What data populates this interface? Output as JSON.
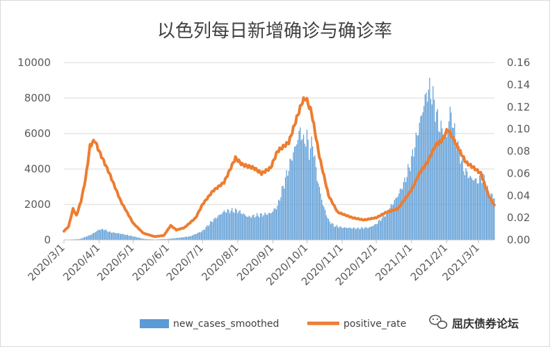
{
  "chart_data": {
    "type": "bar",
    "title": "以色列每日新增确诊与确诊率",
    "y_left": {
      "ticks": [
        "0",
        "2000",
        "4000",
        "6000",
        "8000",
        "10000"
      ],
      "range": [
        0,
        10000
      ]
    },
    "y_right": {
      "ticks": [
        "0.00",
        "0.02",
        "0.04",
        "0.06",
        "0.08",
        "0.10",
        "0.12",
        "0.14",
        "0.16"
      ],
      "range": [
        0,
        0.16
      ]
    },
    "x_ticks": [
      "2020/3/1",
      "2020/4/1",
      "2020/5/1",
      "2020/6/1",
      "2020/7/1",
      "2020/8/1",
      "2020/9/1",
      "2020/10/1",
      "2020/11/1",
      "2020/12/1",
      "2021/1/1",
      "2021/2/1",
      "2021/3/1"
    ],
    "x_range": [
      "2020/3/1",
      "2021/3/15"
    ],
    "legend_position": "bottom",
    "grid": true,
    "series": [
      {
        "name": "new_cases_smoothed",
        "type": "bar",
        "axis": "left",
        "color": "#5b9bd5",
        "points": [
          [
            "2020/3/1",
            0
          ],
          [
            "2020/3/15",
            50
          ],
          [
            "2020/3/25",
            300
          ],
          [
            "2020/4/1",
            580
          ],
          [
            "2020/4/5",
            600
          ],
          [
            "2020/4/10",
            450
          ],
          [
            "2020/4/20",
            350
          ],
          [
            "2020/5/1",
            200
          ],
          [
            "2020/5/10",
            60
          ],
          [
            "2020/5/20",
            20
          ],
          [
            "2020/6/1",
            60
          ],
          [
            "2020/6/10",
            120
          ],
          [
            "2020/6/20",
            200
          ],
          [
            "2020/7/1",
            500
          ],
          [
            "2020/7/10",
            1100
          ],
          [
            "2020/7/20",
            1600
          ],
          [
            "2020/7/25",
            1650
          ],
          [
            "2020/8/1",
            1650
          ],
          [
            "2020/8/5",
            1500
          ],
          [
            "2020/8/10",
            1300
          ],
          [
            "2020/8/20",
            1400
          ],
          [
            "2020/8/30",
            1500
          ],
          [
            "2020/9/5",
            1900
          ],
          [
            "2020/9/10",
            3000
          ],
          [
            "2020/9/17",
            4500
          ],
          [
            "2020/9/22",
            5500
          ],
          [
            "2020/9/25",
            6200
          ],
          [
            "2020/9/28",
            5500
          ],
          [
            "2020/10/1",
            5800
          ],
          [
            "2020/10/3",
            5000
          ],
          [
            "2020/10/6",
            5500
          ],
          [
            "2020/10/10",
            3500
          ],
          [
            "2020/10/15",
            2000
          ],
          [
            "2020/10/20",
            1100
          ],
          [
            "2020/10/25",
            800
          ],
          [
            "2020/11/1",
            700
          ],
          [
            "2020/11/15",
            650
          ],
          [
            "2020/11/25",
            700
          ],
          [
            "2020/12/1",
            900
          ],
          [
            "2020/12/10",
            1500
          ],
          [
            "2020/12/20",
            2500
          ],
          [
            "2020/12/26",
            3300
          ],
          [
            "2021/1/1",
            4500
          ],
          [
            "2021/1/8",
            6500
          ],
          [
            "2021/1/14",
            8200
          ],
          [
            "2021/1/17",
            8500
          ],
          [
            "2021/1/20",
            8000
          ],
          [
            "2021/1/25",
            6500
          ],
          [
            "2021/2/1",
            5800
          ],
          [
            "2021/2/4",
            7300
          ],
          [
            "2021/2/10",
            5500
          ],
          [
            "2021/2/16",
            4000
          ],
          [
            "2021/2/22",
            3500
          ],
          [
            "2021/3/1",
            3300
          ],
          [
            "2021/3/5",
            3600
          ],
          [
            "2021/3/10",
            2600
          ],
          [
            "2021/3/15",
            2400
          ]
        ]
      },
      {
        "name": "positive_rate",
        "type": "line",
        "axis": "right",
        "color": "#ed7d31",
        "points": [
          [
            "2020/3/1",
            0.008
          ],
          [
            "2020/3/5",
            0.012
          ],
          [
            "2020/3/9",
            0.028
          ],
          [
            "2020/3/12",
            0.022
          ],
          [
            "2020/3/16",
            0.035
          ],
          [
            "2020/3/20",
            0.055
          ],
          [
            "2020/3/24",
            0.085
          ],
          [
            "2020/3/28",
            0.09
          ],
          [
            "2020/4/1",
            0.08
          ],
          [
            "2020/4/10",
            0.06
          ],
          [
            "2020/4/20",
            0.035
          ],
          [
            "2020/5/1",
            0.015
          ],
          [
            "2020/5/10",
            0.006
          ],
          [
            "2020/5/20",
            0.003
          ],
          [
            "2020/5/28",
            0.004
          ],
          [
            "2020/6/3",
            0.013
          ],
          [
            "2020/6/8",
            0.009
          ],
          [
            "2020/6/15",
            0.011
          ],
          [
            "2020/6/25",
            0.02
          ],
          [
            "2020/7/1",
            0.032
          ],
          [
            "2020/7/10",
            0.044
          ],
          [
            "2020/7/20",
            0.052
          ],
          [
            "2020/7/30",
            0.074
          ],
          [
            "2020/8/5",
            0.068
          ],
          [
            "2020/8/15",
            0.065
          ],
          [
            "2020/8/22",
            0.06
          ],
          [
            "2020/8/30",
            0.065
          ],
          [
            "2020/9/5",
            0.08
          ],
          [
            "2020/9/15",
            0.088
          ],
          [
            "2020/9/22",
            0.11
          ],
          [
            "2020/9/27",
            0.125
          ],
          [
            "2020/9/30",
            0.128
          ],
          [
            "2020/10/5",
            0.115
          ],
          [
            "2020/10/12",
            0.075
          ],
          [
            "2020/10/20",
            0.04
          ],
          [
            "2020/10/28",
            0.025
          ],
          [
            "2020/11/10",
            0.02
          ],
          [
            "2020/11/20",
            0.018
          ],
          [
            "2020/12/1",
            0.02
          ],
          [
            "2020/12/10",
            0.025
          ],
          [
            "2020/12/20",
            0.028
          ],
          [
            "2021/1/1",
            0.045
          ],
          [
            "2021/1/8",
            0.06
          ],
          [
            "2021/1/15",
            0.07
          ],
          [
            "2021/1/22",
            0.085
          ],
          [
            "2021/1/28",
            0.09
          ],
          [
            "2021/2/2",
            0.1
          ],
          [
            "2021/2/10",
            0.085
          ],
          [
            "2021/2/18",
            0.07
          ],
          [
            "2021/2/25",
            0.065
          ],
          [
            "2021/3/3",
            0.06
          ],
          [
            "2021/3/10",
            0.04
          ],
          [
            "2021/3/15",
            0.031
          ]
        ]
      }
    ]
  },
  "watermark": {
    "text": "屈庆债券论坛"
  }
}
